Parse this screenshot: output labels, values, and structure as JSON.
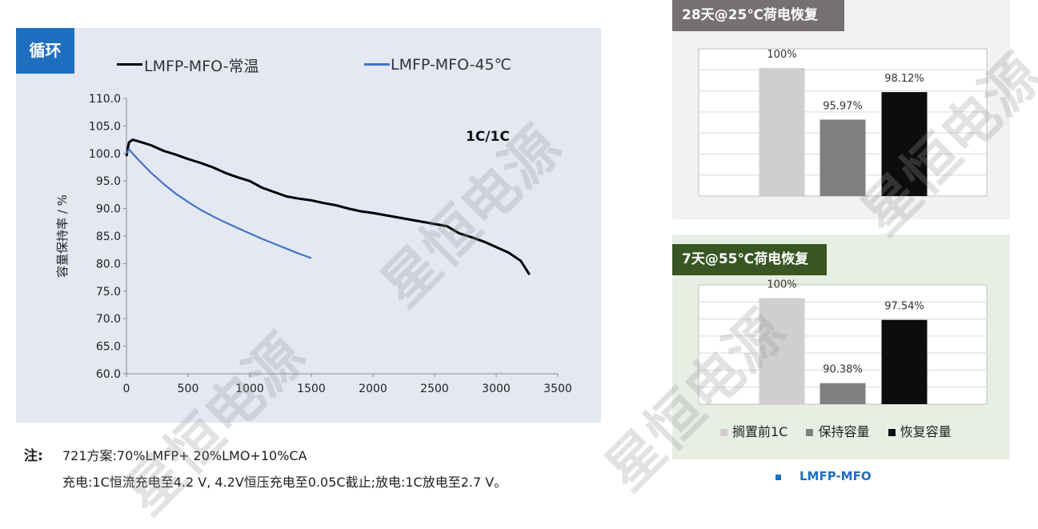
{
  "tag": "循环",
  "legend": {
    "series1": "LMFP-MFO-常温",
    "series2": "LMFP-MFO-45℃"
  },
  "colors": {
    "tag_bg": "#1f6fc0",
    "series1": "#000000",
    "series2": "#4472c4",
    "hdr1_bg": "#767171",
    "hdr2_bg": "#375623",
    "bar_light": "#d0cece",
    "bar_mid": "#808080",
    "bar_dark": "#0d0d0d",
    "brand": "#1f6fc0"
  },
  "chart_data": [
    {
      "type": "line",
      "annotation": "1C/1C",
      "ylabel": "容量保持率 / %",
      "xlabel": "",
      "xlim": [
        0,
        3500
      ],
      "ylim": [
        60,
        110
      ],
      "xticks": [
        "0",
        "500",
        "1000",
        "1500",
        "2000",
        "2500",
        "3000",
        "3500"
      ],
      "yticks": [
        "60.0",
        "65.0",
        "70.0",
        "75.0",
        "80.0",
        "85.0",
        "90.0",
        "95.0",
        "100.0",
        "105.0",
        "110.0"
      ],
      "series": [
        {
          "name": "LMFP-MFO-常温",
          "x": [
            0,
            20,
            50,
            100,
            200,
            300,
            400,
            500,
            600,
            700,
            800,
            900,
            1000,
            1100,
            1200,
            1300,
            1400,
            1500,
            1600,
            1700,
            1800,
            1900,
            2000,
            2100,
            2200,
            2300,
            2400,
            2500,
            2600,
            2700,
            2800,
            2900,
            3000,
            3100,
            3200,
            3270
          ],
          "y": [
            99.5,
            102,
            102.5,
            102.2,
            101.5,
            100.5,
            99.8,
            99,
            98.3,
            97.5,
            96.5,
            95.7,
            95,
            93.8,
            93,
            92.2,
            91.8,
            91.5,
            91,
            90.6,
            90,
            89.5,
            89.2,
            88.8,
            88.4,
            88,
            87.6,
            87.2,
            86.8,
            85.5,
            84.8,
            84,
            83,
            82,
            80.5,
            78
          ]
        },
        {
          "name": "LMFP-MFO-45℃",
          "x": [
            0,
            20,
            50,
            100,
            200,
            300,
            400,
            500,
            600,
            700,
            800,
            900,
            1000,
            1100,
            1200,
            1300,
            1400,
            1500
          ],
          "y": [
            100,
            100.8,
            100,
            98.8,
            96.5,
            94.5,
            92.7,
            91.2,
            89.8,
            88.6,
            87.5,
            86.5,
            85.5,
            84.5,
            83.6,
            82.7,
            81.8,
            81
          ]
        }
      ]
    },
    {
      "type": "bar",
      "title": "28天@25℃荷电恢复",
      "categories": [
        "搁置前1C",
        "保持容量",
        "恢复容量"
      ],
      "values": [
        100,
        95.97,
        98.12
      ],
      "labels": [
        "100%",
        "95.97%",
        "98.12%"
      ],
      "ylim": [
        90,
        101.5
      ]
    },
    {
      "type": "bar",
      "title": "7天@55℃荷电恢复",
      "categories": [
        "搁置前1C",
        "保持容量",
        "恢复容量"
      ],
      "values": [
        100,
        90.38,
        97.54
      ],
      "labels": [
        "100%",
        "90.38%",
        "97.54%"
      ],
      "ylim": [
        88,
        101.5
      ]
    }
  ],
  "right_legend": {
    "item1": "搁置前1C",
    "item2": "保持容量",
    "item3": "恢复容量"
  },
  "right_caption": "LMFP-MFO",
  "notes": {
    "label": "注:",
    "line1": "721方案:70%LMFP+ 20%LMO+10%CA",
    "line2": "充电:1C恒流充电至4.2 V, 4.2V恒压充电至0.05C截止;放电:1C放电至2.7 V。"
  },
  "watermark": "星恒电源"
}
